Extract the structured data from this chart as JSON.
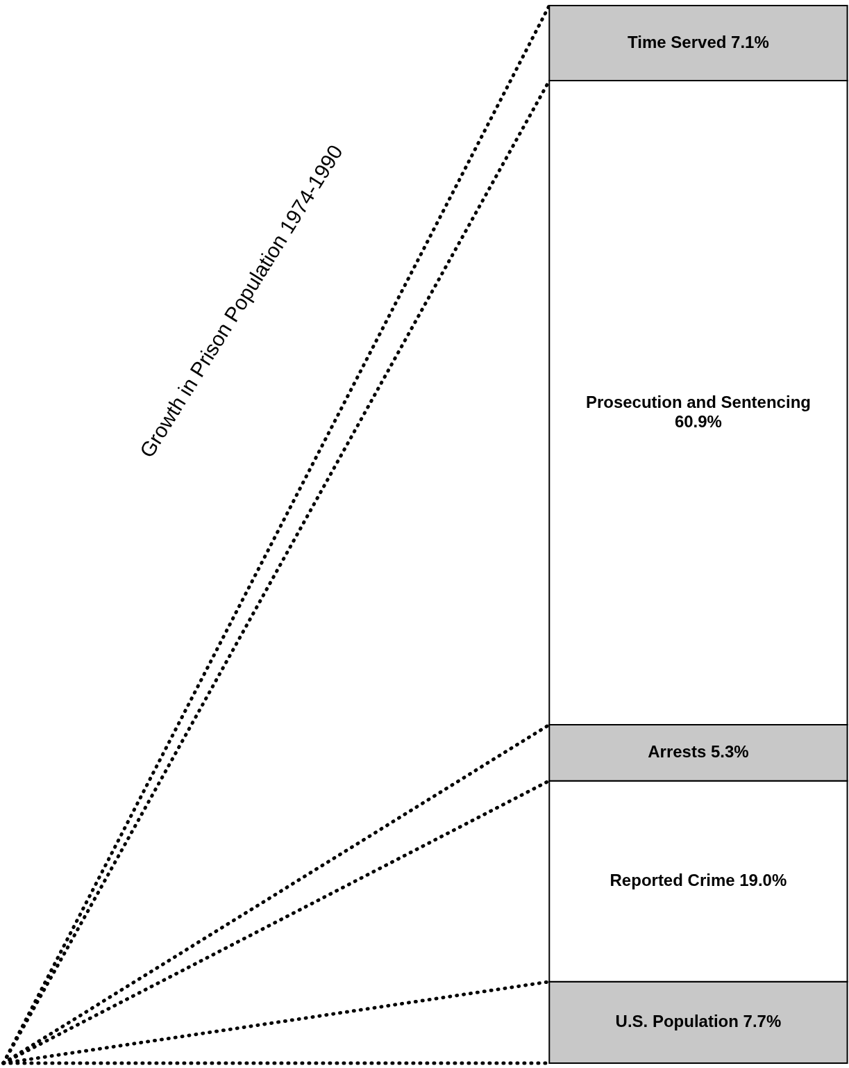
{
  "chart_data": {
    "type": "bar",
    "title": "Growth in Prison Population 1974-1990",
    "stacked": true,
    "categories": [
      null
    ],
    "ylim": [
      0,
      100
    ],
    "tick_labels": false,
    "series": [
      {
        "name": "U.S. Population",
        "color": "#c8c8c8",
        "values": [
          7.7
        ],
        "value_labels": [
          "7.7%"
        ]
      },
      {
        "name": "Reported Crime",
        "color": "#ffffff",
        "values": [
          19.0
        ],
        "value_labels": [
          "19.0%"
        ]
      },
      {
        "name": "Arrests",
        "color": "#c8c8c8",
        "values": [
          5.3
        ],
        "value_labels": [
          "5.3%"
        ]
      },
      {
        "name": "Prosecution and Sentencing",
        "color": "#ffffff",
        "values": [
          60.9
        ],
        "value_labels": [
          "60.9%"
        ]
      },
      {
        "name": "Time Served",
        "color": "#c8c8c8",
        "values": [
          7.1
        ],
        "value_labels": [
          "7.1%"
        ]
      }
    ]
  }
}
